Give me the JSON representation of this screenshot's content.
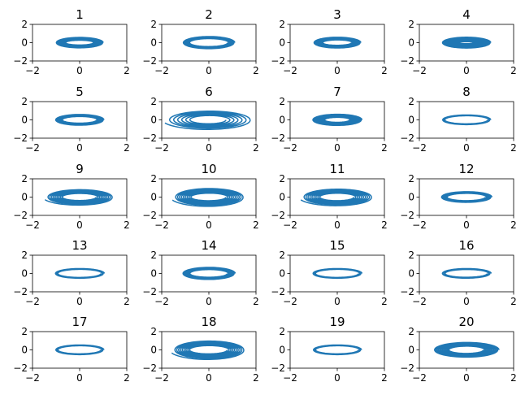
{
  "chart_data": {
    "type": "line",
    "layout": "5x4 grid of subplots",
    "xlim": [
      -2,
      2
    ],
    "ylim": [
      -2,
      2
    ],
    "xticks": [
      -2,
      0,
      2
    ],
    "yticks": [
      -2,
      0,
      2
    ],
    "xtick_labels": [
      "−2",
      "0",
      "2"
    ],
    "ytick_labels": [
      "−2",
      "0",
      "2"
    ],
    "grid": false,
    "color": "#1f77b4",
    "subplots": [
      {
        "title": "1",
        "rx_out": 1.0,
        "ry_out": 0.58,
        "rx_in": 0.58,
        "ry_in": 0.25,
        "loops": 16
      },
      {
        "title": "2",
        "rx_out": 1.1,
        "ry_out": 0.68,
        "rx_in": 0.8,
        "ry_in": 0.42,
        "loops": 8
      },
      {
        "title": "3",
        "rx_out": 1.0,
        "ry_out": 0.6,
        "rx_in": 0.6,
        "ry_in": 0.28,
        "loops": 12
      },
      {
        "title": "4",
        "rx_out": 1.03,
        "ry_out": 0.6,
        "rx_in": 0.32,
        "ry_in": 0.1,
        "loops": 26
      },
      {
        "title": "5",
        "rx_out": 1.03,
        "ry_out": 0.6,
        "rx_in": 0.72,
        "ry_in": 0.35,
        "loops": 10
      },
      {
        "title": "6",
        "rx_out": 1.75,
        "ry_out": 0.98,
        "rx_in": 0.72,
        "ry_in": 0.4,
        "loops": 6,
        "tail": true
      },
      {
        "title": "7",
        "rx_out": 1.05,
        "ry_out": 0.62,
        "rx_in": 0.52,
        "ry_in": 0.26,
        "loops": 16
      },
      {
        "title": "8",
        "rx_out": 1.03,
        "ry_out": 0.55,
        "rx_in": 0.9,
        "ry_in": 0.42,
        "loops": 3
      },
      {
        "title": "9",
        "rx_out": 1.38,
        "ry_out": 0.82,
        "rx_in": 0.7,
        "ry_in": 0.36,
        "loops": 9,
        "tail": true
      },
      {
        "title": "10",
        "rx_out": 1.45,
        "ry_out": 0.95,
        "rx_in": 0.72,
        "ry_in": 0.38,
        "loops": 9,
        "tail": true
      },
      {
        "title": "11",
        "rx_out": 1.45,
        "ry_out": 0.88,
        "rx_in": 0.7,
        "ry_in": 0.38,
        "loops": 9,
        "tail": true
      },
      {
        "title": "12",
        "rx_out": 1.08,
        "ry_out": 0.6,
        "rx_in": 0.8,
        "ry_in": 0.38,
        "loops": 6
      },
      {
        "title": "13",
        "rx_out": 1.05,
        "ry_out": 0.55,
        "rx_in": 0.9,
        "ry_in": 0.42,
        "loops": 3
      },
      {
        "title": "14",
        "rx_out": 1.12,
        "ry_out": 0.68,
        "rx_in": 0.78,
        "ry_in": 0.4,
        "loops": 7
      },
      {
        "title": "15",
        "rx_out": 1.05,
        "ry_out": 0.55,
        "rx_in": 0.9,
        "ry_in": 0.42,
        "loops": 3
      },
      {
        "title": "16",
        "rx_out": 1.05,
        "ry_out": 0.55,
        "rx_in": 0.88,
        "ry_in": 0.4,
        "loops": 3
      },
      {
        "title": "17",
        "rx_out": 1.03,
        "ry_out": 0.55,
        "rx_in": 0.9,
        "ry_in": 0.42,
        "loops": 3
      },
      {
        "title": "18",
        "rx_out": 1.48,
        "ry_out": 0.98,
        "rx_in": 0.78,
        "ry_in": 0.42,
        "loops": 9,
        "tail": true
      },
      {
        "title": "19",
        "rx_out": 1.03,
        "ry_out": 0.55,
        "rx_in": 0.9,
        "ry_in": 0.42,
        "loops": 3
      },
      {
        "title": "20",
        "rx_out": 1.38,
        "ry_out": 0.82,
        "rx_in": 0.72,
        "ry_in": 0.38,
        "loops": 12
      }
    ]
  }
}
